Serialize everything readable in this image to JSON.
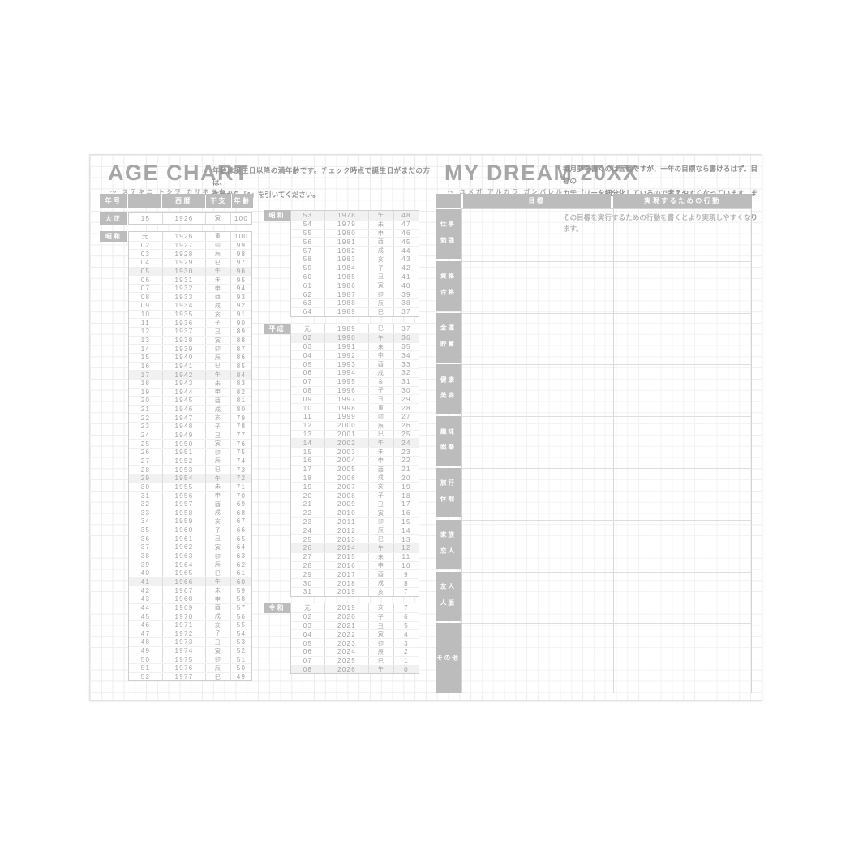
{
  "left_page": {
    "title": "AGE CHART",
    "subtitle": "〜 ステキニ トシヲ カサネヨウ 〜",
    "description_lines": [
      "年齢は誕生日以降の満年齢です。チェック時点で誕生日がまだの方は、",
      "年齢から「1」を引いてください。"
    ],
    "header_cells": [
      "年号",
      "",
      "西暦",
      "干支",
      "年齢"
    ],
    "highlight_zodiac": "午",
    "columns_col1": [
      {
        "era": "大正",
        "rows": [
          [
            "15",
            "1926",
            "寅",
            "100"
          ]
        ]
      },
      {
        "era": "昭和",
        "rows": [
          [
            "元",
            "1926",
            "寅",
            "100"
          ],
          [
            "02",
            "1927",
            "卯",
            "99"
          ],
          [
            "03",
            "1928",
            "辰",
            "98"
          ],
          [
            "04",
            "1929",
            "巳",
            "97"
          ],
          [
            "05",
            "1930",
            "午",
            "96"
          ],
          [
            "06",
            "1931",
            "未",
            "95"
          ],
          [
            "07",
            "1932",
            "申",
            "94"
          ],
          [
            "08",
            "1933",
            "酉",
            "93"
          ],
          [
            "09",
            "1934",
            "戌",
            "92"
          ],
          [
            "10",
            "1935",
            "亥",
            "91"
          ],
          [
            "11",
            "1936",
            "子",
            "90"
          ],
          [
            "12",
            "1937",
            "丑",
            "89"
          ],
          [
            "13",
            "1938",
            "寅",
            "88"
          ],
          [
            "14",
            "1939",
            "卯",
            "87"
          ],
          [
            "15",
            "1940",
            "辰",
            "86"
          ],
          [
            "16",
            "1941",
            "巳",
            "85"
          ],
          [
            "17",
            "1942",
            "午",
            "84"
          ],
          [
            "18",
            "1943",
            "未",
            "83"
          ],
          [
            "19",
            "1944",
            "申",
            "82"
          ],
          [
            "20",
            "1945",
            "酉",
            "81"
          ],
          [
            "21",
            "1946",
            "戌",
            "80"
          ],
          [
            "22",
            "1947",
            "亥",
            "79"
          ],
          [
            "23",
            "1948",
            "子",
            "78"
          ],
          [
            "24",
            "1949",
            "丑",
            "77"
          ],
          [
            "25",
            "1950",
            "寅",
            "76"
          ],
          [
            "26",
            "1951",
            "卯",
            "75"
          ],
          [
            "27",
            "1952",
            "辰",
            "74"
          ],
          [
            "28",
            "1953",
            "巳",
            "73"
          ],
          [
            "29",
            "1954",
            "午",
            "72"
          ],
          [
            "30",
            "1955",
            "未",
            "71"
          ],
          [
            "31",
            "1956",
            "申",
            "70"
          ],
          [
            "32",
            "1957",
            "酉",
            "69"
          ],
          [
            "33",
            "1958",
            "戌",
            "68"
          ],
          [
            "34",
            "1959",
            "亥",
            "67"
          ],
          [
            "35",
            "1960",
            "子",
            "66"
          ],
          [
            "36",
            "1961",
            "丑",
            "65"
          ],
          [
            "37",
            "1962",
            "寅",
            "64"
          ],
          [
            "38",
            "1963",
            "卯",
            "63"
          ],
          [
            "39",
            "1964",
            "辰",
            "62"
          ],
          [
            "40",
            "1965",
            "巳",
            "61"
          ],
          [
            "41",
            "1966",
            "午",
            "60"
          ],
          [
            "42",
            "1967",
            "未",
            "59"
          ],
          [
            "43",
            "1968",
            "申",
            "58"
          ],
          [
            "44",
            "1969",
            "酉",
            "57"
          ],
          [
            "45",
            "1970",
            "戌",
            "56"
          ],
          [
            "46",
            "1971",
            "亥",
            "55"
          ],
          [
            "47",
            "1972",
            "子",
            "54"
          ],
          [
            "48",
            "1973",
            "丑",
            "53"
          ],
          [
            "49",
            "1974",
            "寅",
            "52"
          ],
          [
            "50",
            "1975",
            "卯",
            "51"
          ],
          [
            "51",
            "1976",
            "辰",
            "50"
          ],
          [
            "52",
            "1977",
            "巳",
            "49"
          ]
        ]
      }
    ],
    "columns_col2": [
      {
        "era": "昭和",
        "rows": [
          [
            "53",
            "1978",
            "午",
            "48"
          ],
          [
            "54",
            "1979",
            "未",
            "47"
          ],
          [
            "55",
            "1980",
            "申",
            "46"
          ],
          [
            "56",
            "1981",
            "酉",
            "45"
          ],
          [
            "57",
            "1982",
            "戌",
            "44"
          ],
          [
            "58",
            "1983",
            "亥",
            "43"
          ],
          [
            "59",
            "1984",
            "子",
            "42"
          ],
          [
            "60",
            "1985",
            "丑",
            "41"
          ],
          [
            "61",
            "1986",
            "寅",
            "40"
          ],
          [
            "62",
            "1987",
            "卯",
            "39"
          ],
          [
            "63",
            "1988",
            "辰",
            "38"
          ],
          [
            "64",
            "1989",
            "巳",
            "37"
          ]
        ]
      },
      {
        "era": "平成",
        "rows": [
          [
            "元",
            "1989",
            "巳",
            "37"
          ],
          [
            "02",
            "1990",
            "午",
            "36"
          ],
          [
            "03",
            "1991",
            "未",
            "35"
          ],
          [
            "04",
            "1992",
            "申",
            "34"
          ],
          [
            "05",
            "1993",
            "酉",
            "33"
          ],
          [
            "06",
            "1994",
            "戌",
            "32"
          ],
          [
            "07",
            "1995",
            "亥",
            "31"
          ],
          [
            "08",
            "1996",
            "子",
            "30"
          ],
          [
            "09",
            "1997",
            "丑",
            "29"
          ],
          [
            "10",
            "1998",
            "寅",
            "28"
          ],
          [
            "11",
            "1999",
            "卯",
            "27"
          ],
          [
            "12",
            "2000",
            "辰",
            "26"
          ],
          [
            "13",
            "2001",
            "巳",
            "25"
          ],
          [
            "14",
            "2002",
            "午",
            "24"
          ],
          [
            "15",
            "2003",
            "未",
            "23"
          ],
          [
            "16",
            "2004",
            "申",
            "22"
          ],
          [
            "17",
            "2005",
            "酉",
            "21"
          ],
          [
            "18",
            "2006",
            "戌",
            "20"
          ],
          [
            "19",
            "2007",
            "亥",
            "19"
          ],
          [
            "20",
            "2008",
            "子",
            "18"
          ],
          [
            "21",
            "2009",
            "丑",
            "17"
          ],
          [
            "22",
            "2010",
            "寅",
            "16"
          ],
          [
            "23",
            "2011",
            "卯",
            "15"
          ],
          [
            "24",
            "2012",
            "辰",
            "14"
          ],
          [
            "25",
            "2013",
            "巳",
            "13"
          ],
          [
            "26",
            "2014",
            "午",
            "12"
          ],
          [
            "27",
            "2015",
            "未",
            "11"
          ],
          [
            "28",
            "2016",
            "申",
            "10"
          ],
          [
            "29",
            "2017",
            "酉",
            "9"
          ],
          [
            "30",
            "2018",
            "戌",
            "8"
          ],
          [
            "31",
            "2019",
            "亥",
            "7"
          ]
        ]
      },
      {
        "era": "令和",
        "rows": [
          [
            "元",
            "2019",
            "亥",
            "7"
          ],
          [
            "02",
            "2020",
            "子",
            "6"
          ],
          [
            "03",
            "2021",
            "丑",
            "5"
          ],
          [
            "04",
            "2022",
            "寅",
            "4"
          ],
          [
            "05",
            "2023",
            "卯",
            "3"
          ],
          [
            "06",
            "2024",
            "辰",
            "2"
          ],
          [
            "07",
            "2025",
            "巳",
            "1"
          ],
          [
            "08",
            "2026",
            "午",
            "0"
          ]
        ]
      }
    ]
  },
  "right_page": {
    "title": "MY DREAM 20XX",
    "subtitle": "〜 ユメガ アルカラ ガンバレル 〜",
    "description_lines": [
      "毎月夢を書くのは面倒ですが、一年の目標なら書けるはず。目標の",
      "カテゴリーを細分化しているので考えやすくなっています。また",
      "その目標を実行するための行動を書くとより実現しやすくなります。"
    ],
    "columns": {
      "goal": "目標",
      "action": "実現するための行動"
    },
    "categories": [
      {
        "lines": [
          "仕事",
          "勉強"
        ]
      },
      {
        "lines": [
          "資格",
          "合格"
        ]
      },
      {
        "lines": [
          "金運",
          "貯蓄"
        ]
      },
      {
        "lines": [
          "健康",
          "美容"
        ]
      },
      {
        "lines": [
          "趣味",
          "娯楽"
        ]
      },
      {
        "lines": [
          "旅行",
          "休暇"
        ]
      },
      {
        "lines": [
          "家族",
          "恋人"
        ]
      },
      {
        "lines": [
          "友人",
          "人脈"
        ]
      },
      {
        "lines": [
          "その他"
        ]
      }
    ]
  },
  "colors": {
    "panel_gray": "#bcbcbc",
    "table_text_gray": "#a2a2a2",
    "title_gray": "#a6a6a6",
    "description_gray": "#8f8f8f",
    "table_border": "#cfcfcf",
    "zodiac_highlight_row": "#f1f1f1",
    "grid_line": "#ededed"
  }
}
